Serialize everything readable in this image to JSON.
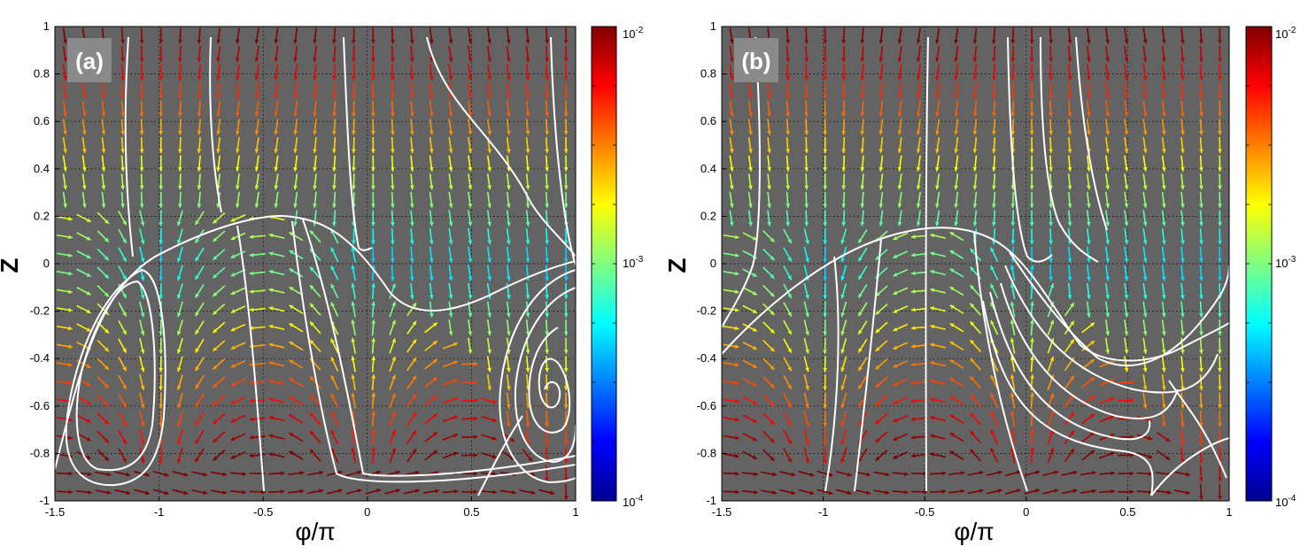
{
  "chart_data": [
    {
      "type": "streamplot",
      "panel": "(a)",
      "xlabel": "φ/π",
      "ylabel": "Z",
      "xlim": [
        -1.5,
        1
      ],
      "ylim": [
        -1,
        1
      ],
      "xticks": [
        "-1.5",
        "-1",
        "-0.5",
        "0",
        "0.5",
        "1"
      ],
      "yticks": [
        "1",
        "0.8",
        "0.6",
        "0.4",
        "0.2",
        "0",
        "-0.2",
        "-0.4",
        "-0.6",
        "-0.8",
        "-1"
      ],
      "grid": true,
      "colorbar": {
        "scale": "log",
        "min_label": "10",
        "min_exp": "-4",
        "mid_label": "10",
        "mid_exp": "-3",
        "max_label": "10",
        "max_exp": "-2"
      },
      "features": {
        "separatrix_peak": {
          "x": -0.5,
          "z": 0.2
        },
        "vortex_left": {
          "x": -1.25,
          "z": -0.55
        },
        "vortex_right": {
          "x": 0.78,
          "z": -0.52
        }
      }
    },
    {
      "type": "streamplot",
      "panel": "(b)",
      "xlabel": "φ/π",
      "ylabel": "Z",
      "xlim": [
        -1.5,
        1
      ],
      "ylim": [
        -1,
        1
      ],
      "xticks": [
        "-1.5",
        "-1",
        "-0.5",
        "0",
        "0.5",
        "1"
      ],
      "yticks": [
        "1",
        "0.8",
        "0.6",
        "0.4",
        "0.2",
        "0",
        "-0.2",
        "-0.4",
        "-0.6",
        "-0.8",
        "-1"
      ],
      "grid": true,
      "colorbar": {
        "scale": "log",
        "min_label": "10",
        "min_exp": "-4",
        "mid_label": "10",
        "mid_exp": "-3",
        "max_label": "10",
        "max_exp": "-2"
      },
      "features": {
        "separatrix_peak": {
          "x": -0.5,
          "z": 0.15
        }
      }
    }
  ]
}
